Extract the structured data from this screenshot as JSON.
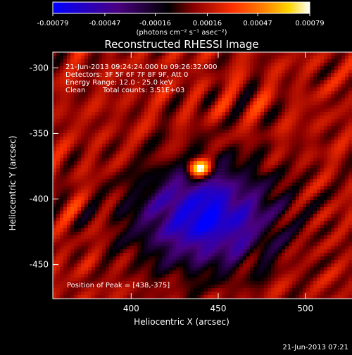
{
  "chart_data": {
    "type": "heatmap",
    "title": "Reconstructed RHESSI Image",
    "xlabel": "Heliocentric X (arcsec)",
    "ylabel": "Heliocentric Y (arcsec)",
    "xlim": [
      355,
      545
    ],
    "ylim": [
      -476,
      -288
    ],
    "x_ticks": [
      400,
      450,
      500
    ],
    "y_ticks": [
      -300,
      -350,
      -400,
      -450
    ],
    "grid": false,
    "colorbar": {
      "position": "top",
      "range": [
        -0.00079,
        0.00079
      ],
      "ticks": [
        "-0.00079",
        "-0.00047",
        "-0.00016",
        "0.00016",
        "0.00047",
        "0.00079"
      ],
      "tick_values": [
        -0.00079,
        -0.00047,
        -0.00016,
        0.00016,
        0.00047,
        0.00079
      ],
      "unit_label": "(photons cm⁻² s⁻¹ asec⁻²)",
      "colormap": [
        "#0000ff",
        "#4b0082",
        "#000000",
        "#8b0000",
        "#ff3000",
        "#ff8000",
        "#ffd700",
        "#ffffff"
      ]
    },
    "annotations": {
      "time_range": "21-Jun-2013 09:24:24.000 to 09:26:32.000",
      "detectors": "Detectors: 3F 5F 6F 7F 8F 9F, Att 0",
      "energy": "Energy Range: 12.0 - 25.0 keV",
      "clean_label": "Clean",
      "total_counts": "Total counts: 3.51E+03",
      "peak": "Position of Peak = [438,-375]"
    },
    "peak_position": [
      438,
      -375
    ],
    "peak_value": 0.00079
  },
  "footer": {
    "timestamp": "21-Jun-2013 07:21"
  }
}
